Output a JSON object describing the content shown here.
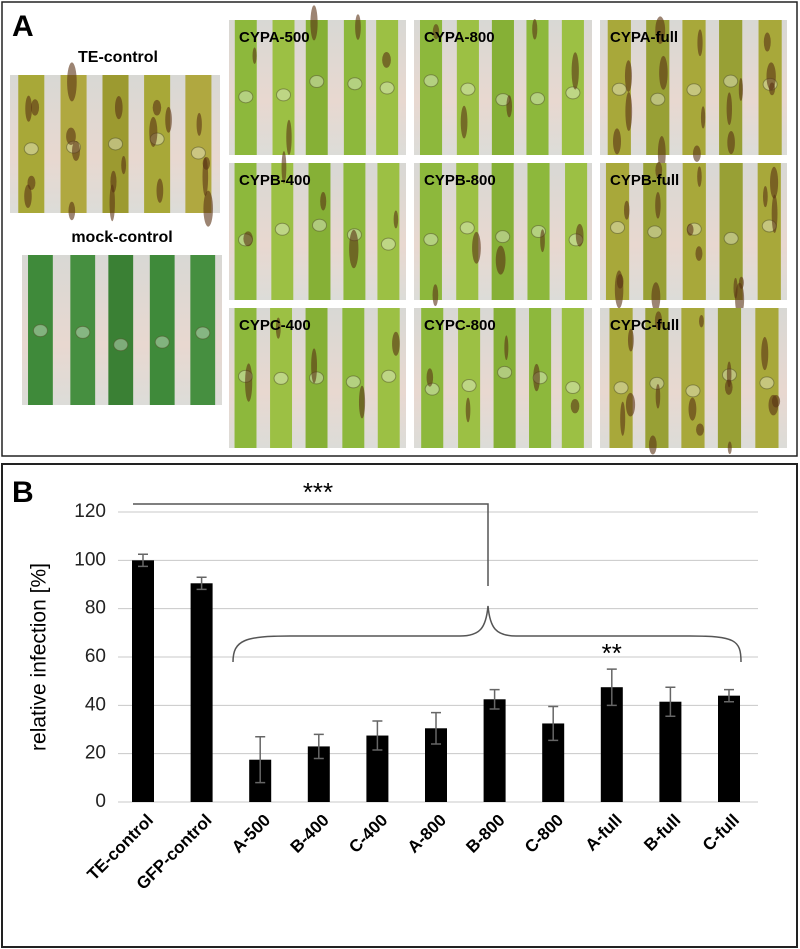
{
  "panels": {
    "a": {
      "label": "A",
      "controls": [
        "TE-control",
        "mock-control"
      ],
      "photos": [
        "CYPA-500",
        "CYPA-800",
        "CYPA-full",
        "CYPB-400",
        "CYPB-800",
        "CYPB-full",
        "CYPC-400",
        "CYPC-800",
        "CYPC-full"
      ]
    },
    "b": {
      "label": "B"
    }
  },
  "chart_data": {
    "type": "bar",
    "ylabel": "relative infection [%]",
    "categories": [
      "TE-control",
      "GFP-control",
      "A-500",
      "B-400",
      "C-400",
      "A-800",
      "B-800",
      "C-800",
      "A-full",
      "B-full",
      "C-full"
    ],
    "values": [
      100,
      90.5,
      17.5,
      23,
      27.5,
      30.5,
      42.5,
      32.5,
      47.5,
      41.5,
      44
    ],
    "errors": [
      2.5,
      2.5,
      9.5,
      5,
      6,
      6.5,
      4,
      7,
      7.5,
      6,
      2.5
    ],
    "color": "#000000",
    "ylim": [
      0,
      120
    ],
    "yticks": [
      0,
      20,
      40,
      60,
      80,
      100,
      120
    ],
    "grid": true,
    "annotations": [
      "***",
      "**"
    ]
  }
}
